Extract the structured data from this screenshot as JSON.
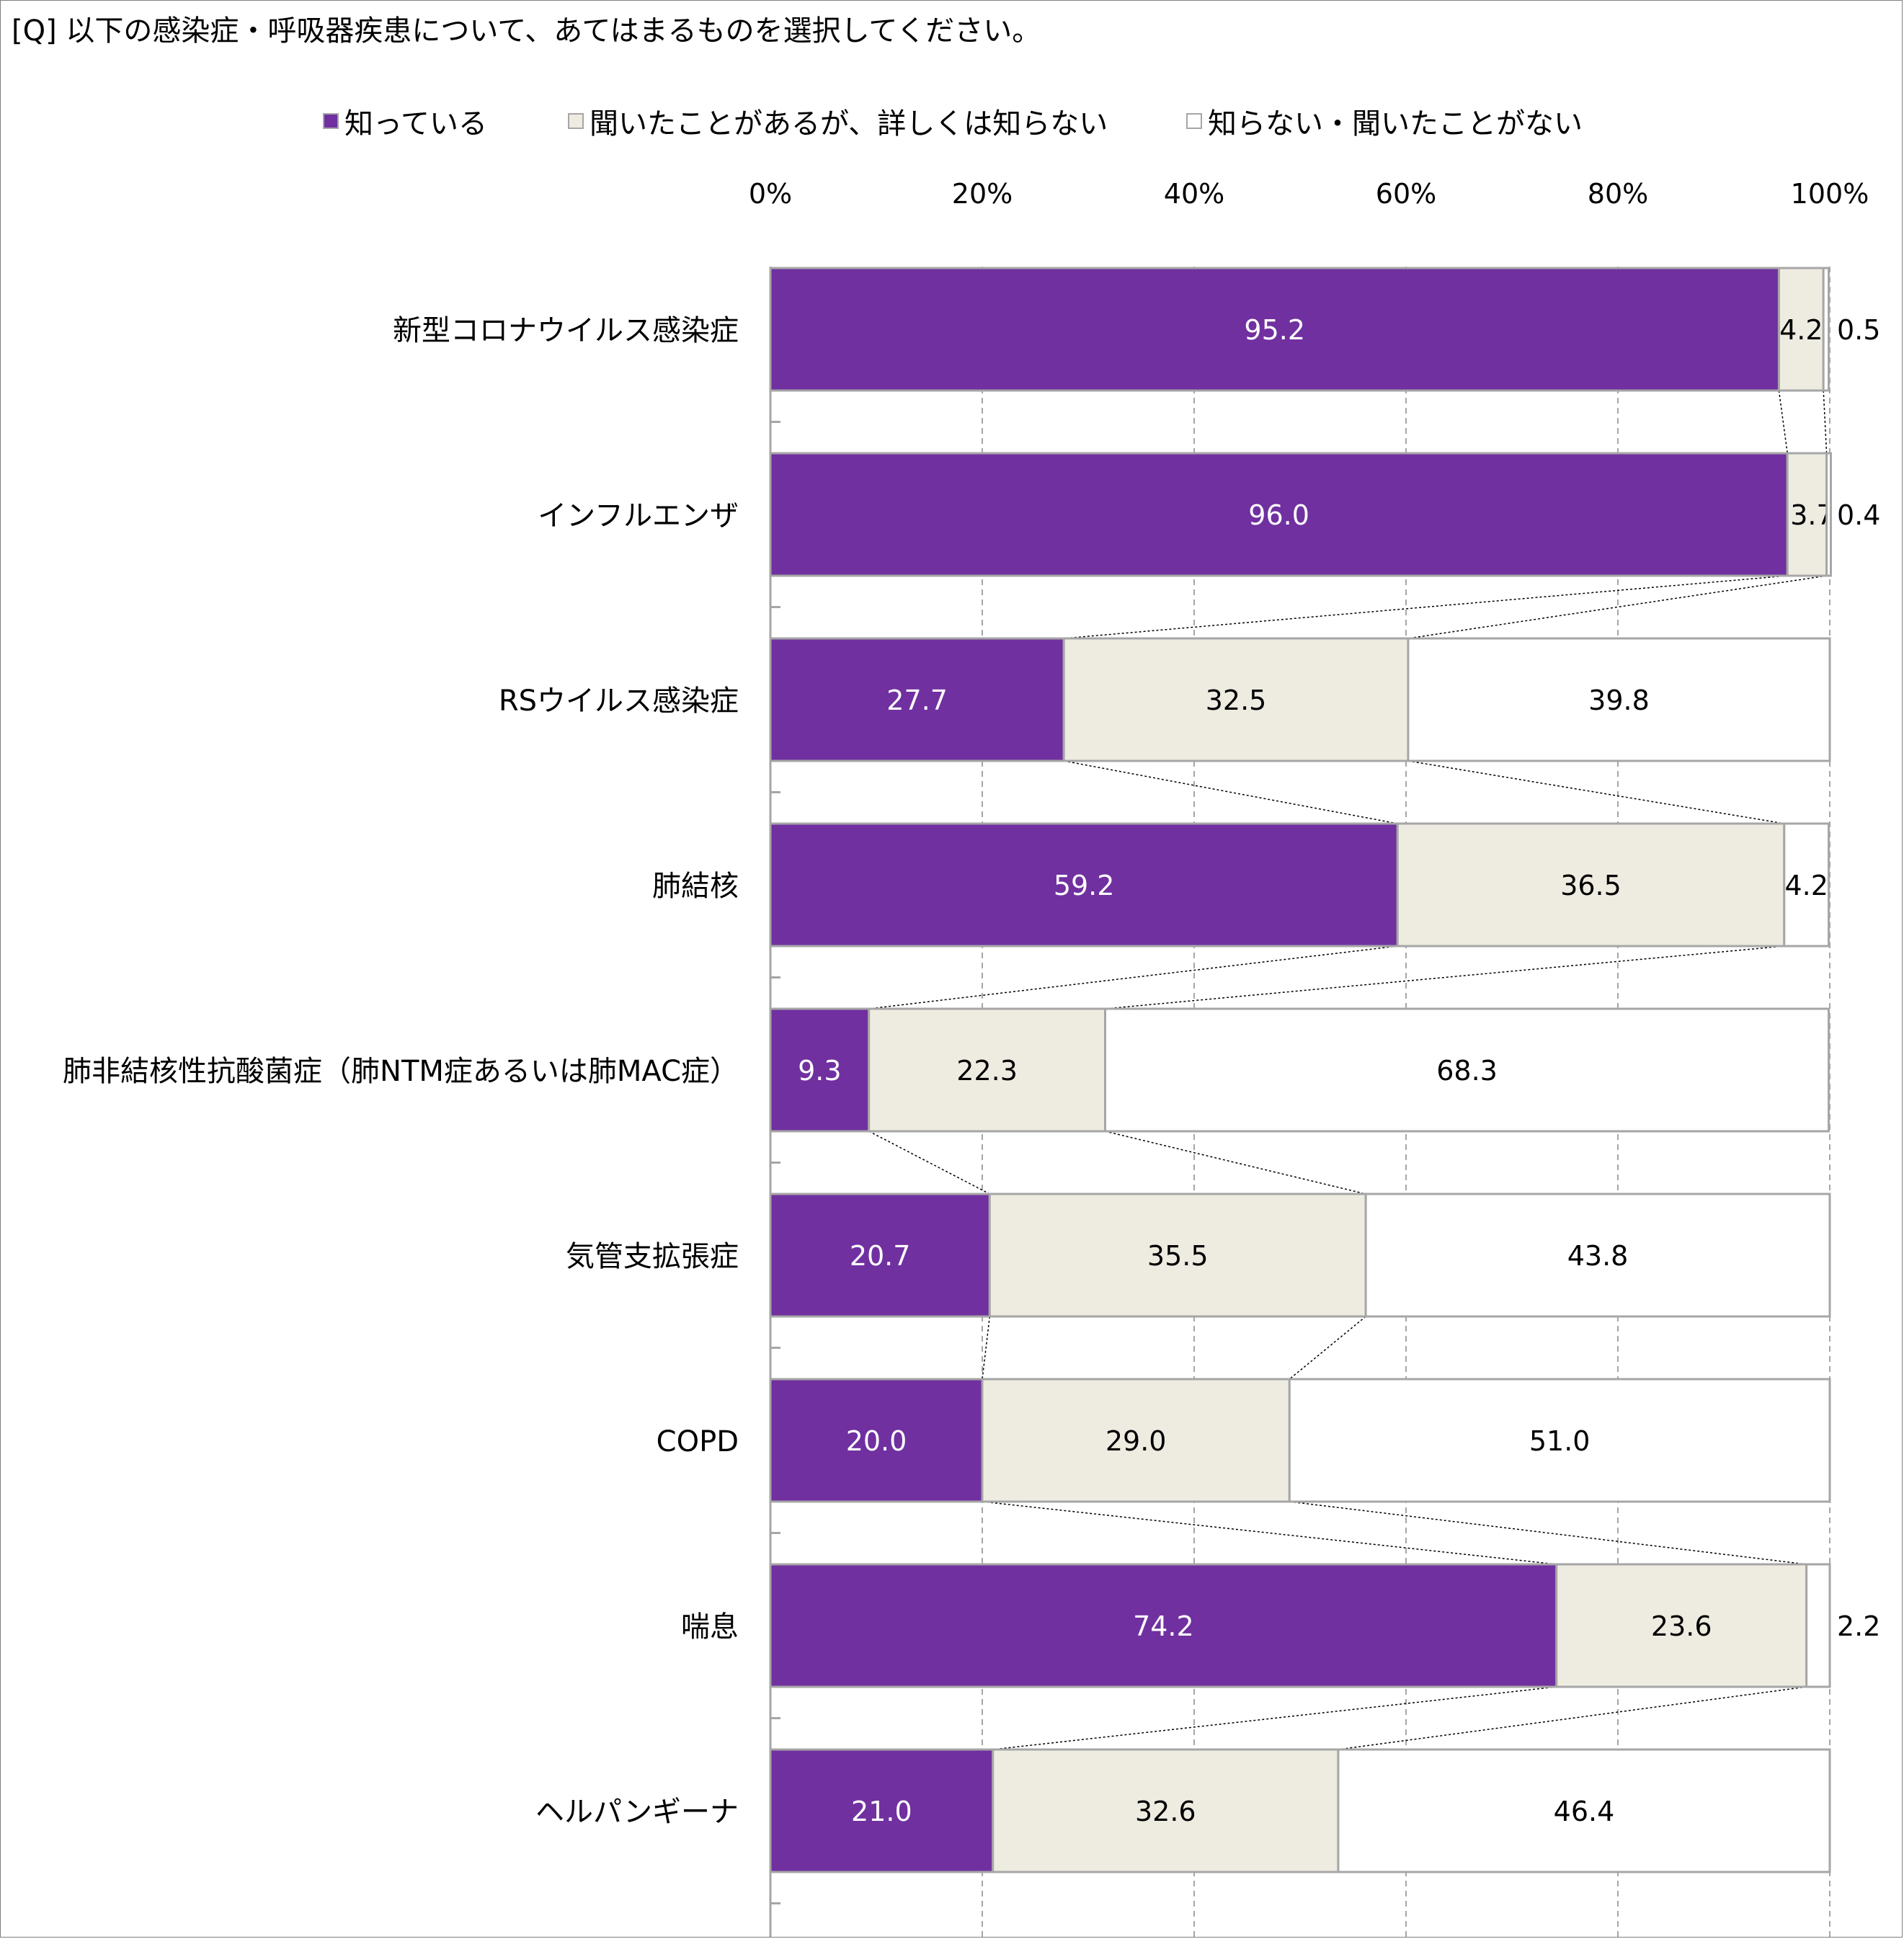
{
  "question": "[Q] 以下の感染症・呼吸器疾患について、あてはまるものを選択してください。",
  "legend": [
    {
      "label": "知っている",
      "color": "#7030a0"
    },
    {
      "label": "聞いたことがあるが、詳しくは知らない",
      "color": "#eeece1"
    },
    {
      "label": "知らない・聞いたことがない",
      "color": "#ffffff"
    }
  ],
  "chart_data": {
    "type": "bar",
    "orientation": "horizontal",
    "stacked": "100%",
    "xlim": [
      0,
      100
    ],
    "x_ticks": [
      "0%",
      "20%",
      "40%",
      "60%",
      "80%",
      "100%"
    ],
    "grid": true,
    "legend_position": "top",
    "series_lines": true,
    "categories": [
      "新型コロナウイルス感染症",
      "インフルエンザ",
      "RSウイルス感染症",
      "肺結核",
      "肺非結核性抗酸菌症（肺NTM症あるいは肺MAC症）",
      "気管支拡張症",
      "COPD",
      "喘息",
      "ヘルパンギーナ"
    ],
    "series": [
      {
        "name": "知っている",
        "color": "#7030a0",
        "label_color": "#ffffff",
        "values": [
          95.2,
          96.0,
          27.7,
          59.2,
          9.3,
          20.7,
          20.0,
          74.2,
          21.0
        ],
        "labels": [
          "95.2",
          "96.0",
          "27.7",
          "59.2",
          "9.3",
          "20.7",
          "20.0",
          "74.2",
          "21.0"
        ]
      },
      {
        "name": "聞いたことがあるが、詳しくは知らない",
        "color": "#eeece1",
        "label_color": "#000000",
        "values": [
          4.2,
          3.7,
          32.5,
          36.5,
          22.3,
          35.5,
          29.0,
          23.6,
          32.6
        ],
        "labels": [
          "4.2",
          "3.7",
          "32.5",
          "36.5",
          "22.3",
          "35.5",
          "29.0",
          "23.6",
          "32.6"
        ]
      },
      {
        "name": "知らない・聞いたことがない",
        "color": "#ffffff",
        "label_color": "#000000",
        "values": [
          0.5,
          0.4,
          39.8,
          4.2,
          68.3,
          43.8,
          51.0,
          2.2,
          46.4
        ],
        "labels": [
          "0.5",
          "0.4",
          "39.8",
          "4.2",
          "68.3",
          "43.8",
          "51.0",
          "2.2",
          "46.4"
        ]
      }
    ]
  }
}
